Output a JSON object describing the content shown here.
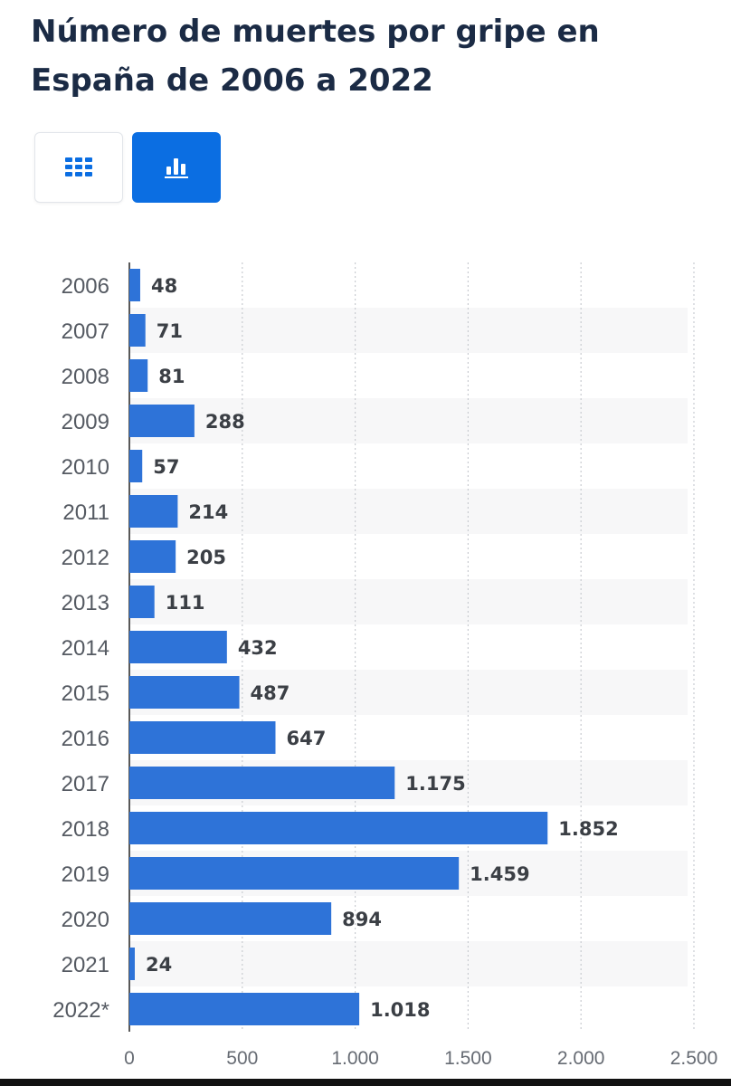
{
  "header": {
    "title": "Número de muertes por gripe en España de 2006 a 2022"
  },
  "view_toggle": {
    "table_icon": "grid-table-icon",
    "chart_icon": "bar-chart-icon",
    "active": "chart",
    "active_color": "#0b6ee2",
    "icon_color": "#0b6ee2"
  },
  "chart_data": {
    "type": "bar",
    "orientation": "horizontal",
    "categories": [
      "2006",
      "2007",
      "2008",
      "2009",
      "2010",
      "2011",
      "2012",
      "2013",
      "2014",
      "2015",
      "2016",
      "2017",
      "2018",
      "2019",
      "2020",
      "2021",
      "2022*"
    ],
    "values": [
      48,
      71,
      81,
      288,
      57,
      214,
      205,
      111,
      432,
      487,
      647,
      1175,
      1852,
      1459,
      894,
      24,
      1018
    ],
    "value_labels": [
      "48",
      "71",
      "81",
      "288",
      "57",
      "214",
      "205",
      "111",
      "432",
      "487",
      "647",
      "1.175",
      "1.852",
      "1.459",
      "894",
      "24",
      "1.018"
    ],
    "xlim": [
      0,
      2500
    ],
    "x_ticks": [
      0,
      500,
      1000,
      1500,
      2000,
      2500
    ],
    "x_tick_labels": [
      "0",
      "500",
      "1.000",
      "1.500",
      "2.000",
      "2.500"
    ],
    "grid": true,
    "bar_color": "#2e73d8",
    "stripe_color": "#f7f7f8"
  }
}
